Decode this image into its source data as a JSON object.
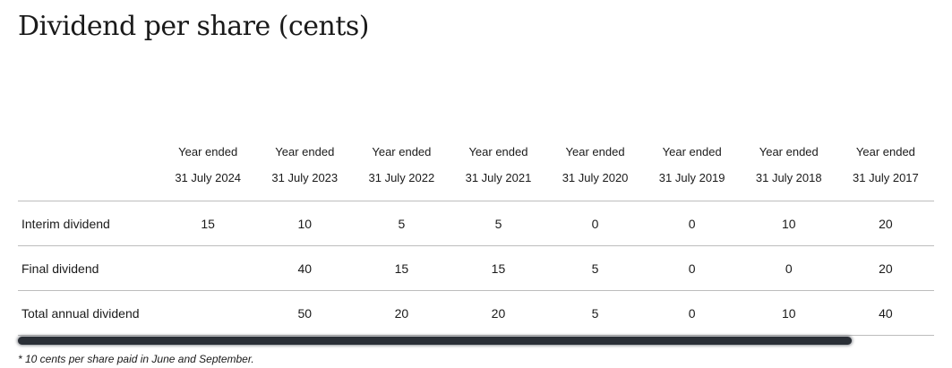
{
  "title": "Dividend per share (cents)",
  "columns": [
    {
      "line1": "Year ended",
      "line2": "31 July 2024"
    },
    {
      "line1": "Year ended",
      "line2": "31 July 2023"
    },
    {
      "line1": "Year ended",
      "line2": "31 July 2022"
    },
    {
      "line1": "Year ended",
      "line2": "31 July 2021"
    },
    {
      "line1": "Year ended",
      "line2": "31 July 2020"
    },
    {
      "line1": "Year ended",
      "line2": "31 July 2019"
    },
    {
      "line1": "Year ended",
      "line2": "31 July 2018"
    },
    {
      "line1": "Year ended",
      "line2": "31 July 2017"
    }
  ],
  "rows": [
    {
      "label": "Interim dividend",
      "values": [
        "15",
        "10",
        "5",
        "5",
        "0",
        "0",
        "10",
        "20"
      ]
    },
    {
      "label": "Final dividend",
      "values": [
        "",
        "40",
        "15",
        "15",
        "5",
        "0",
        "0",
        "20"
      ]
    },
    {
      "label": "Total annual dividend",
      "values": [
        "",
        "50",
        "20",
        "20",
        "5",
        "0",
        "10",
        "40"
      ]
    }
  ],
  "footnote": "* 10 cents per share paid in June and September.",
  "scrollbar": {
    "thumb_fraction": 0.91
  },
  "colors": {
    "text": "#1a1a1a",
    "rule": "#bdbdbd",
    "scrollbar_thumb": "#2a2f36"
  }
}
